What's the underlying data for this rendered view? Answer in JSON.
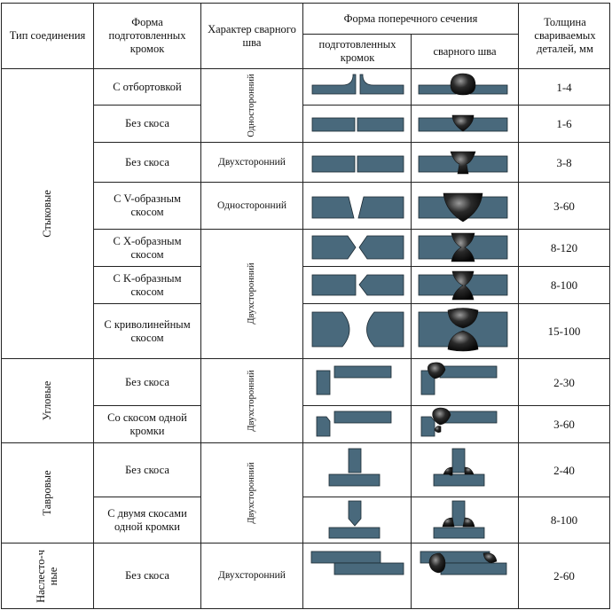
{
  "header": {
    "joint_type": "Тип соединения",
    "edge_form": "Форма подготовленных кромок",
    "seam_type": "Характер сварного шва",
    "cross_section": "Форма поперечного сечения",
    "prepared_edges": "подготовленных кромок",
    "weld_seam": "сварного шва",
    "thickness": "Толщина свариваемых деталей, мм"
  },
  "groups": {
    "butt": "Стыковые",
    "corner": "Угловые",
    "tee": "Тавровые",
    "lap": "Наслесто-чные"
  },
  "seam": {
    "one_sided": "Односторонний",
    "two_sided": "Двухсторонний"
  },
  "rows": [
    {
      "edge": "С отбортовкой",
      "thickness": "1-4"
    },
    {
      "edge": "Без скоса",
      "thickness": "1-6"
    },
    {
      "edge": "Без скоса",
      "thickness": "3-8"
    },
    {
      "edge": "С V-образным скосом",
      "thickness": "3-60"
    },
    {
      "edge": "С X-образным скосом",
      "thickness": "8-120"
    },
    {
      "edge": "С K-образным скосом",
      "thickness": "8-100"
    },
    {
      "edge": "С криволинейным скосом",
      "thickness": "15-100"
    },
    {
      "edge": "Без скоса",
      "thickness": "2-30"
    },
    {
      "edge": "Со скосом одной кромки",
      "thickness": "3-60"
    },
    {
      "edge": "Без скоса",
      "thickness": "2-40"
    },
    {
      "edge": "С двумя скосами одной кромки",
      "thickness": "8-100"
    },
    {
      "edge": "Без скоса",
      "thickness": "2-60"
    }
  ],
  "colors": {
    "plate": "#49697c",
    "weld": "#1a1a1a",
    "line": "#222222"
  }
}
